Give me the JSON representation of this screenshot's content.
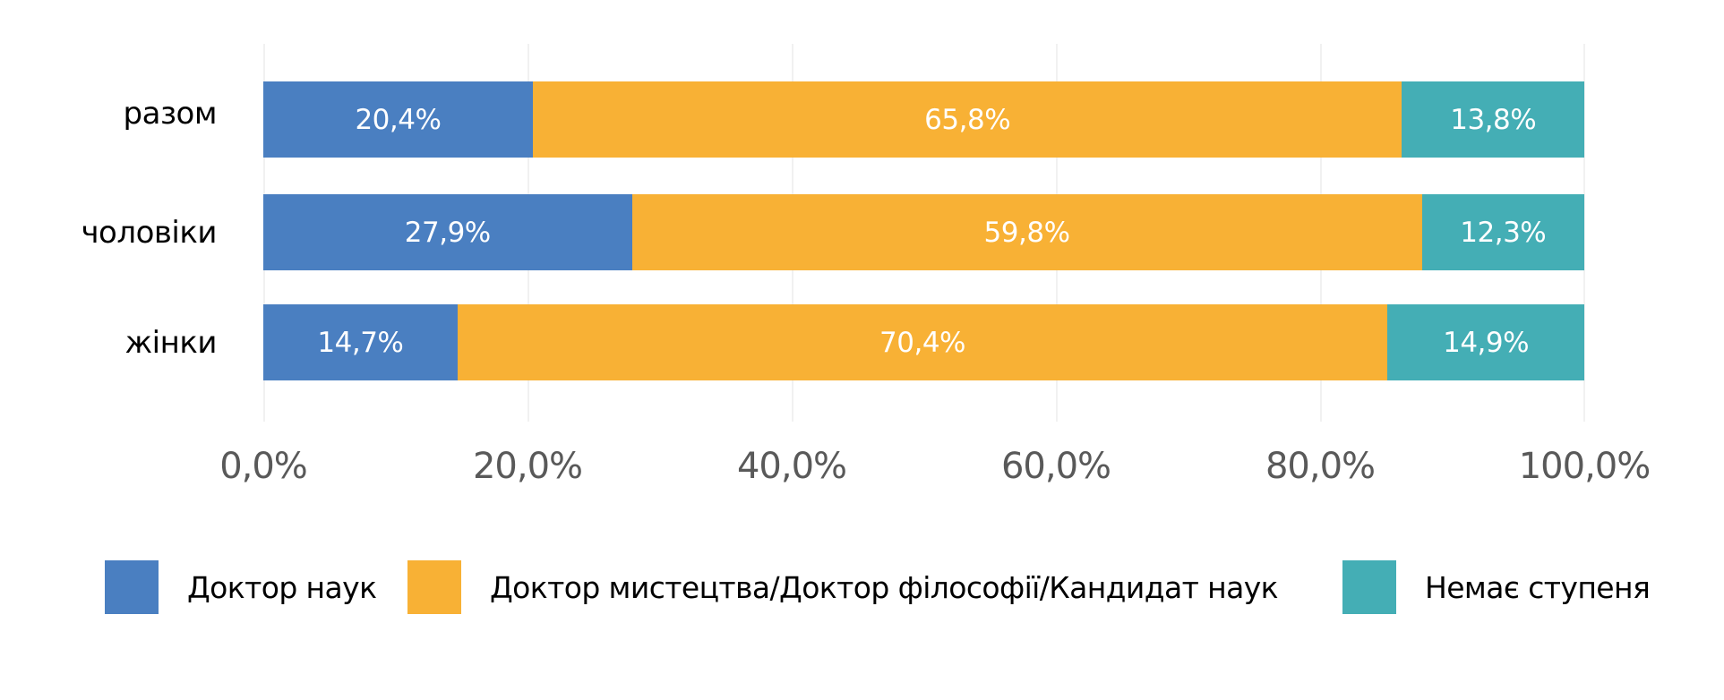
{
  "chart_data": {
    "type": "bar",
    "orientation": "horizontal",
    "stacked": "percent",
    "title": "",
    "xlabel": "",
    "ylabel": "",
    "xlim": [
      0,
      100
    ],
    "grid": true,
    "legend_position": "bottom",
    "categories": [
      "разом",
      "чоловіки",
      "жінки"
    ],
    "x_ticks": [
      "0,0%",
      "20,0%",
      "40,0%",
      "60,0%",
      "80,0%",
      "100,0%"
    ],
    "series": [
      {
        "name": "Доктор наук",
        "color": "#4A7FC1",
        "values": [
          20.4,
          27.9,
          14.7
        ],
        "labels": [
          "20,4%",
          "27,9%",
          "14,7%"
        ]
      },
      {
        "name": "Доктор мистецтва/Доктор філософії/Кандидат наук",
        "color": "#F8B135",
        "values": [
          65.8,
          59.8,
          70.4
        ],
        "labels": [
          "65,8%",
          "59,8%",
          "70,4%"
        ]
      },
      {
        "name": "Немає ступеня",
        "color": "#44AEB5",
        "values": [
          13.8,
          12.3,
          14.9
        ],
        "labels": [
          "13,8%",
          "12,3%",
          "14,9%"
        ]
      }
    ]
  }
}
